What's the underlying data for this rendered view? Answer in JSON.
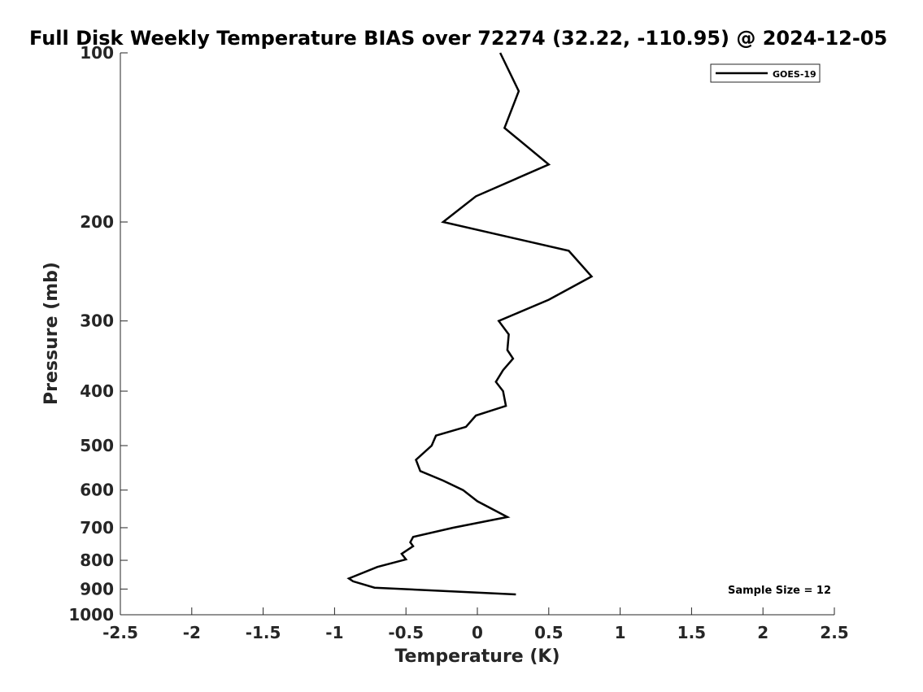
{
  "chart_data": {
    "type": "line",
    "title": "Full Disk Weekly Temperature BIAS over 72274 (32.22, -110.95) @ 2024-12-05",
    "xlabel": "Temperature (K)",
    "ylabel": "Pressure (mb)",
    "xlim": [
      -2.5,
      2.5
    ],
    "ylim": [
      100,
      1000
    ],
    "y_scale": "log",
    "y_reversed": true,
    "x_ticks": [
      "-2.5",
      "-2",
      "-1.5",
      "-1",
      "-0.5",
      "0",
      "0.5",
      "1",
      "1.5",
      "2",
      "2.5"
    ],
    "y_ticks": [
      "100",
      "200",
      "300",
      "400",
      "500",
      "600",
      "700",
      "800",
      "900",
      "1000"
    ],
    "grid": false,
    "legend_position": "top-right",
    "annotation": "Sample Size = 12",
    "series": [
      {
        "name": "GOES-19",
        "color": "#000000",
        "points": [
          {
            "t": 0.16,
            "p": 100
          },
          {
            "t": 0.29,
            "p": 117
          },
          {
            "t": 0.19,
            "p": 136
          },
          {
            "t": 0.5,
            "p": 158
          },
          {
            "t": -0.01,
            "p": 180
          },
          {
            "t": -0.24,
            "p": 200
          },
          {
            "t": 0.64,
            "p": 225
          },
          {
            "t": 0.8,
            "p": 250
          },
          {
            "t": 0.5,
            "p": 275
          },
          {
            "t": 0.15,
            "p": 300
          },
          {
            "t": 0.22,
            "p": 317
          },
          {
            "t": 0.21,
            "p": 338
          },
          {
            "t": 0.25,
            "p": 350
          },
          {
            "t": 0.18,
            "p": 367
          },
          {
            "t": 0.13,
            "p": 385
          },
          {
            "t": 0.18,
            "p": 400
          },
          {
            "t": 0.2,
            "p": 425
          },
          {
            "t": -0.01,
            "p": 442
          },
          {
            "t": -0.08,
            "p": 463
          },
          {
            "t": -0.29,
            "p": 480
          },
          {
            "t": -0.32,
            "p": 500
          },
          {
            "t": -0.43,
            "p": 530
          },
          {
            "t": -0.4,
            "p": 555
          },
          {
            "t": -0.24,
            "p": 577
          },
          {
            "t": -0.1,
            "p": 600
          },
          {
            "t": 0.0,
            "p": 628
          },
          {
            "t": 0.21,
            "p": 670
          },
          {
            "t": -0.17,
            "p": 700
          },
          {
            "t": -0.45,
            "p": 727
          },
          {
            "t": -0.47,
            "p": 743
          },
          {
            "t": -0.45,
            "p": 755
          },
          {
            "t": -0.53,
            "p": 779
          },
          {
            "t": -0.5,
            "p": 797
          },
          {
            "t": -0.7,
            "p": 822
          },
          {
            "t": -0.9,
            "p": 862
          },
          {
            "t": -0.87,
            "p": 872
          },
          {
            "t": -0.72,
            "p": 895
          },
          {
            "t": 0.27,
            "p": 920
          }
        ]
      }
    ]
  }
}
